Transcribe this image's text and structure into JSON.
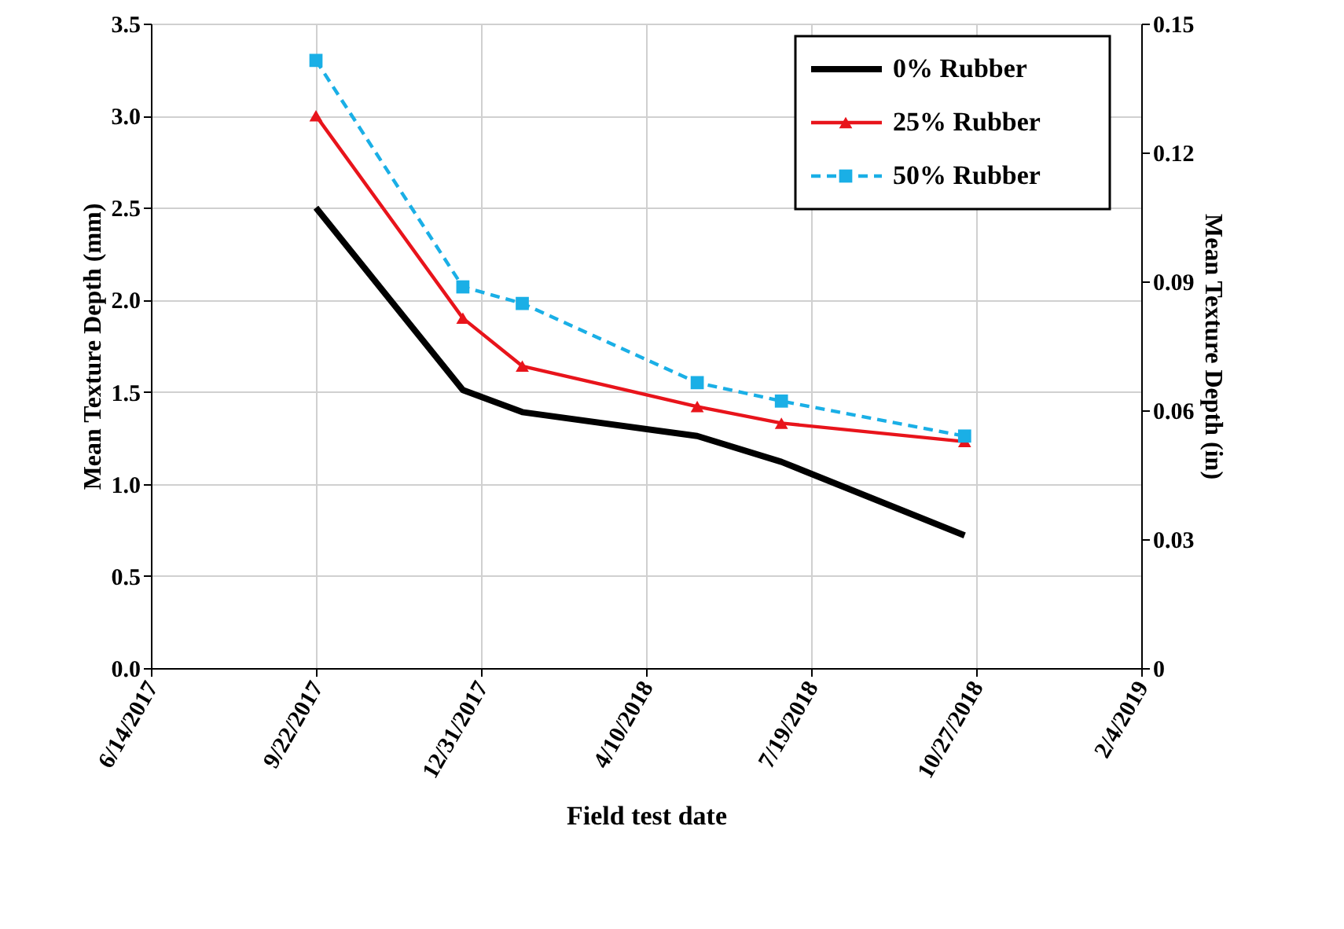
{
  "chart_data": {
    "type": "line",
    "xlabel": "Field test date",
    "ylabel": "Mean Texture Depth (mm)",
    "y2label": "Mean Texture Depth (in)",
    "x": [
      "2017-09-22",
      "2017-12-20",
      "2018-01-25",
      "2018-05-11",
      "2018-07-01",
      "2018-10-20"
    ],
    "series": [
      {
        "name": "0% Rubber",
        "color": "#000000",
        "values": [
          2.5,
          1.51,
          1.39,
          1.26,
          1.12,
          0.72
        ],
        "marker": "none",
        "line_style": "solid"
      },
      {
        "name": "25% Rubber",
        "color": "#e8141b",
        "values": [
          3.0,
          1.9,
          1.64,
          1.42,
          1.33,
          1.23
        ],
        "marker": "triangle",
        "line_style": "solid"
      },
      {
        "name": "50% Rubber",
        "color": "#1aafe6",
        "values": [
          3.3,
          2.07,
          1.98,
          1.55,
          1.45,
          1.26
        ],
        "marker": "square",
        "line_style": "dashed"
      }
    ],
    "xlim": [
      "2017-06-14",
      "2019-02-04"
    ],
    "xticks": [
      {
        "value": "2017-06-14",
        "label": "6/14/2017"
      },
      {
        "value": "2017-09-22",
        "label": "9/22/2017"
      },
      {
        "value": "2017-12-31",
        "label": "12/31/2017"
      },
      {
        "value": "2018-04-10",
        "label": "4/10/2018"
      },
      {
        "value": "2018-07-19",
        "label": "7/19/2018"
      },
      {
        "value": "2018-10-27",
        "label": "10/27/2018"
      },
      {
        "value": "2019-02-04",
        "label": "2/4/2019"
      }
    ],
    "ylim": [
      0,
      3.5
    ],
    "yticks": [
      {
        "value": 0,
        "label": "0.0"
      },
      {
        "value": 0.5,
        "label": "0.5"
      },
      {
        "value": 1,
        "label": "1.0"
      },
      {
        "value": 1.5,
        "label": "1.5"
      },
      {
        "value": 2,
        "label": "2.0"
      },
      {
        "value": 2.5,
        "label": "2.5"
      },
      {
        "value": 3,
        "label": "3.0"
      },
      {
        "value": 3.5,
        "label": "3.5"
      }
    ],
    "y2lim": [
      0,
      0.15
    ],
    "y2ticks": [
      0,
      0.03,
      0.06,
      0.09,
      0.12,
      0.15
    ],
    "grid": true,
    "legend": "top right"
  }
}
